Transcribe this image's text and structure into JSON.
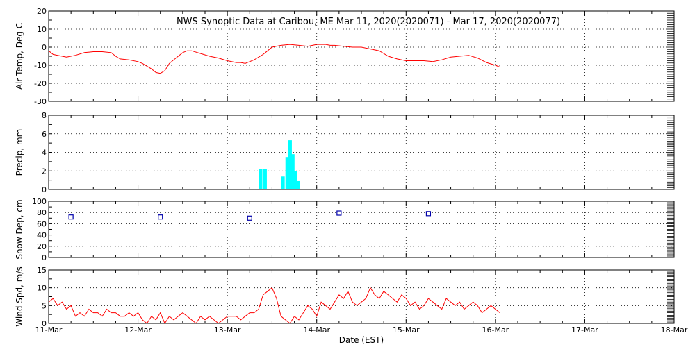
{
  "title": "NWS Synoptic Data at Caribou, ME   Mar 11, 2020(2020071) - Mar 17, 2020(2020077)",
  "xlabel": "Date (EST)",
  "x_ticks": [
    "11-Mar",
    "12-Mar",
    "13-Mar",
    "14-Mar",
    "15-Mar",
    "16-Mar",
    "17-Mar",
    "18-Mar"
  ],
  "colors": {
    "temp": "#ff0000",
    "precip": "#00ffff",
    "snow": "#0000aa",
    "wind": "#ff0000"
  },
  "chart_data": [
    {
      "type": "line",
      "ylabel": "Air Temp, Deg C",
      "ylim": [
        -30,
        20
      ],
      "yticks": [
        20,
        10,
        0,
        -10,
        -20,
        -30
      ],
      "x_unit": "days since 11-Mar",
      "xlim": [
        0,
        7
      ],
      "series": [
        {
          "x": [
            0,
            0.05,
            0.1,
            0.2,
            0.25,
            0.3,
            0.4,
            0.5,
            0.6,
            0.7,
            0.75,
            0.8,
            0.9,
            1.0,
            1.05,
            1.15,
            1.2,
            1.25,
            1.3,
            1.35,
            1.45,
            1.5,
            1.55,
            1.6,
            1.7,
            1.8,
            1.9,
            2.0,
            2.1,
            2.15,
            2.2,
            2.3,
            2.4,
            2.45,
            2.5,
            2.6,
            2.7,
            2.8,
            2.9,
            3.0,
            3.1,
            3.15,
            3.2,
            3.3,
            3.4,
            3.5,
            3.6,
            3.7,
            3.8,
            3.9,
            4.0,
            4.1,
            4.2,
            4.3,
            4.4,
            4.5,
            4.6,
            4.7,
            4.8,
            4.9,
            5.0,
            5.05
          ],
          "y": [
            -2,
            -4,
            -4.5,
            -5.5,
            -5,
            -4.5,
            -3,
            -2.5,
            -2.5,
            -3,
            -5,
            -6.5,
            -7,
            -8,
            -9,
            -12,
            -14,
            -14.5,
            -13,
            -9,
            -5,
            -3,
            -2,
            -2,
            -3.5,
            -5,
            -6,
            -7.5,
            -8.5,
            -8.5,
            -9,
            -7,
            -4,
            -2,
            0,
            1,
            1.5,
            1,
            0.5,
            1.5,
            1.5,
            1,
            1,
            0.5,
            0,
            0,
            -1,
            -2,
            -5,
            -6.5,
            -7.5,
            -7.5,
            -7.5,
            -8,
            -7,
            -5.5,
            -5,
            -4.5,
            -6,
            -8.5,
            -10,
            -11
          ]
        }
      ]
    },
    {
      "type": "bar",
      "ylabel": "Precip, mm",
      "ylim": [
        0,
        8
      ],
      "yticks": [
        8,
        6,
        4,
        2,
        0
      ],
      "x_unit": "days since 11-Mar",
      "xlim": [
        0,
        7
      ],
      "bar_width_days": 0.0417,
      "x": [
        2.35,
        2.4,
        2.6,
        2.65,
        2.68,
        2.71,
        2.74,
        2.77
      ],
      "values": [
        2.2,
        2.2,
        1.4,
        3.5,
        5.3,
        3.8,
        2.0,
        0.9
      ]
    },
    {
      "type": "scatter",
      "ylabel": "Snow Dep, cm",
      "ylim": [
        0,
        100
      ],
      "yticks": [
        100,
        80,
        60,
        40,
        20,
        0
      ],
      "x_unit": "days since 11-Mar",
      "xlim": [
        0,
        7
      ],
      "x": [
        0.25,
        1.25,
        2.25,
        3.25,
        4.25
      ],
      "y": [
        72,
        72,
        70,
        79,
        78
      ]
    },
    {
      "type": "line",
      "ylabel": "Wind Spd, m/s",
      "ylim": [
        0,
        15
      ],
      "yticks": [
        15,
        10,
        5,
        0
      ],
      "x_unit": "days since 11-Mar",
      "xlim": [
        0,
        7
      ],
      "series": [
        {
          "x": [
            0,
            0.05,
            0.1,
            0.15,
            0.2,
            0.25,
            0.3,
            0.35,
            0.4,
            0.45,
            0.5,
            0.55,
            0.6,
            0.65,
            0.7,
            0.75,
            0.8,
            0.85,
            0.9,
            0.95,
            1.0,
            1.05,
            1.1,
            1.15,
            1.2,
            1.25,
            1.3,
            1.35,
            1.4,
            1.45,
            1.5,
            1.55,
            1.6,
            1.65,
            1.7,
            1.75,
            1.8,
            1.85,
            1.9,
            1.95,
            2.0,
            2.05,
            2.1,
            2.15,
            2.2,
            2.25,
            2.3,
            2.35,
            2.4,
            2.45,
            2.5,
            2.55,
            2.6,
            2.65,
            2.7,
            2.75,
            2.8,
            2.85,
            2.9,
            2.95,
            3.0,
            3.05,
            3.1,
            3.15,
            3.2,
            3.25,
            3.3,
            3.35,
            3.4,
            3.45,
            3.5,
            3.55,
            3.6,
            3.65,
            3.7,
            3.75,
            3.8,
            3.85,
            3.9,
            3.95,
            4.0,
            4.05,
            4.1,
            4.15,
            4.2,
            4.25,
            4.3,
            4.35,
            4.4,
            4.45,
            4.5,
            4.55,
            4.6,
            4.65,
            4.7,
            4.75,
            4.8,
            4.85,
            4.9,
            4.95,
            5.0,
            5.05
          ],
          "y": [
            6,
            7,
            5,
            6,
            4,
            5,
            2,
            3,
            2,
            4,
            3,
            3,
            2,
            4,
            3,
            3,
            2,
            2,
            3,
            2,
            3,
            1,
            0,
            2,
            1,
            3,
            0,
            2,
            1,
            2,
            3,
            2,
            1,
            0,
            2,
            1,
            2,
            1,
            0,
            1,
            2,
            2,
            2,
            1,
            2,
            3,
            3,
            4,
            8,
            9,
            10,
            7,
            2,
            1,
            0,
            2,
            1,
            3,
            5,
            4,
            2,
            6,
            5,
            4,
            6,
            8,
            7,
            9,
            6,
            5,
            6,
            7,
            10,
            8,
            7,
            9,
            8,
            7,
            6,
            8,
            7,
            5,
            6,
            4,
            5,
            7,
            6,
            5,
            4,
            7,
            6,
            5,
            6,
            4,
            5,
            6,
            5,
            3,
            4,
            5,
            4,
            3
          ]
        }
      ]
    }
  ]
}
